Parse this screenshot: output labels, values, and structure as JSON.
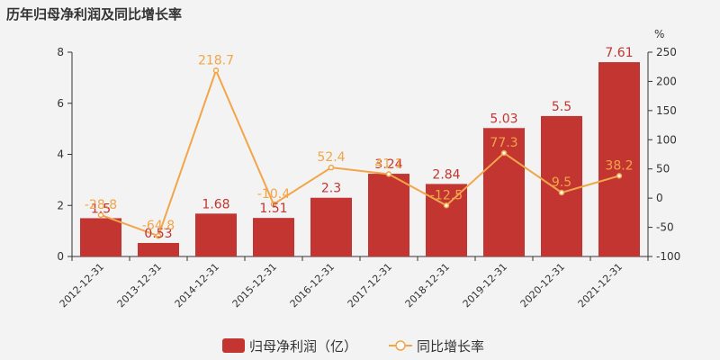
{
  "chart_data": {
    "type": "bar",
    "title": "历年归母净利润及同比增长率",
    "categories": [
      "2012-12-31",
      "2013-12-31",
      "2014-12-31",
      "2015-12-31",
      "2016-12-31",
      "2017-12-31",
      "2018-12-31",
      "2019-12-31",
      "2020-12-31",
      "2021-12-31"
    ],
    "series": [
      {
        "name": "归母净利润（亿）",
        "type": "bar",
        "axis": "left",
        "values": [
          1.5,
          0.53,
          1.68,
          1.51,
          2.3,
          3.24,
          2.84,
          5.03,
          5.5,
          7.61
        ],
        "labels": [
          "1.5",
          "0.53",
          "1.68",
          "1.51",
          "2.3",
          "3.24",
          "2.84",
          "5.03",
          "5.5",
          "7.61"
        ],
        "color": "#c23531"
      },
      {
        "name": "同比增长率",
        "type": "line",
        "axis": "right",
        "values": [
          -28.8,
          -64.8,
          218.7,
          -10.4,
          52.4,
          41.1,
          -12.5,
          77.3,
          9.5,
          38.2
        ],
        "labels": [
          "-28.8",
          "-64.8",
          "218.7",
          "-10.4",
          "52.4",
          "41.1",
          "-12.5",
          "77.3",
          "9.5",
          "38.2"
        ],
        "color": "#f2a54a"
      }
    ],
    "y_left": {
      "min": 0,
      "max": 8,
      "ticks": [
        "0",
        "2",
        "4",
        "6",
        "8"
      ]
    },
    "y_right": {
      "min": -100,
      "max": 250,
      "label": "%",
      "ticks": [
        "-100",
        "-50",
        "0",
        "50",
        "100",
        "150",
        "200",
        "250"
      ]
    },
    "legend_position": "bottom-center",
    "grid": false
  }
}
